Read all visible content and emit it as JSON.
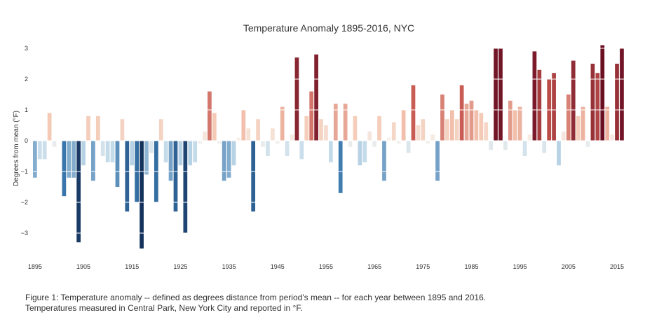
{
  "chart_data": {
    "type": "bar",
    "title": "Temperature Anomaly 1895-2016, NYC",
    "xlabel": "",
    "ylabel": "Degrees from mean (°F)",
    "x_start": 1895,
    "years": [
      1895,
      1896,
      1897,
      1898,
      1899,
      1900,
      1901,
      1902,
      1903,
      1904,
      1905,
      1906,
      1907,
      1908,
      1909,
      1910,
      1911,
      1912,
      1913,
      1914,
      1915,
      1916,
      1917,
      1918,
      1919,
      1920,
      1921,
      1922,
      1923,
      1924,
      1925,
      1926,
      1927,
      1928,
      1929,
      1930,
      1931,
      1932,
      1933,
      1934,
      1935,
      1936,
      1937,
      1938,
      1939,
      1940,
      1941,
      1942,
      1943,
      1944,
      1945,
      1946,
      1947,
      1948,
      1949,
      1950,
      1951,
      1952,
      1953,
      1954,
      1955,
      1956,
      1957,
      1958,
      1959,
      1960,
      1961,
      1962,
      1963,
      1964,
      1965,
      1966,
      1967,
      1968,
      1969,
      1970,
      1971,
      1972,
      1973,
      1974,
      1975,
      1976,
      1977,
      1978,
      1979,
      1980,
      1981,
      1982,
      1983,
      1984,
      1985,
      1986,
      1987,
      1988,
      1989,
      1990,
      1991,
      1992,
      1993,
      1994,
      1995,
      1996,
      1997,
      1998,
      1999,
      2000,
      2001,
      2002,
      2003,
      2004,
      2005,
      2006,
      2007,
      2008,
      2009,
      2010,
      2011,
      2012,
      2013,
      2014,
      2015,
      2016
    ],
    "values": [
      -1.2,
      -0.6,
      -0.6,
      0.9,
      -0.2,
      0.0,
      -1.8,
      -1.2,
      -1.2,
      -3.3,
      -0.8,
      0.8,
      -1.3,
      0.8,
      -0.5,
      -0.7,
      -0.7,
      -1.5,
      0.7,
      -2.3,
      -0.8,
      -2.0,
      -3.5,
      -1.1,
      -0.4,
      -2.0,
      0.7,
      -0.7,
      -1.3,
      -2.3,
      -0.8,
      -3.0,
      -0.8,
      -0.7,
      -0.1,
      0.3,
      1.6,
      0.9,
      -0.1,
      -1.3,
      -1.2,
      -0.8,
      0.1,
      1.0,
      0.4,
      -2.3,
      0.7,
      -0.2,
      -0.5,
      0.4,
      -0.1,
      1.1,
      -0.5,
      0.2,
      2.7,
      -0.6,
      0.8,
      1.6,
      2.8,
      0.7,
      0.5,
      -0.7,
      1.2,
      -1.7,
      1.2,
      -0.2,
      0.8,
      -0.8,
      -0.7,
      0.3,
      -0.2,
      0.8,
      -1.3,
      0.1,
      0.6,
      -0.1,
      1.0,
      -0.4,
      1.8,
      0.5,
      0.7,
      -0.1,
      0.2,
      -1.3,
      1.5,
      0.7,
      1.0,
      0.7,
      1.8,
      1.2,
      1.3,
      1.0,
      0.9,
      0.6,
      -0.3,
      3.0,
      3.0,
      -0.3,
      1.3,
      1.0,
      1.1,
      -0.5,
      0.2,
      2.9,
      2.3,
      -0.4,
      2.0,
      2.2,
      -0.8,
      0.3,
      1.5,
      2.6,
      0.8,
      1.1,
      -0.2,
      2.5,
      2.2,
      3.1,
      1.1,
      0.2,
      2.5,
      3.0
    ],
    "ylim": [
      -3.8,
      3.3
    ],
    "yticks": [
      -3,
      -2,
      -1,
      0,
      1,
      2,
      3
    ],
    "xtick_years": [
      1895,
      1905,
      1915,
      1925,
      1935,
      1945,
      1955,
      1965,
      1975,
      1985,
      1995,
      2005,
      2015
    ],
    "grid": "horizontal white lines drawn over the bars",
    "colormap": "diverging red-blue by value (blue = colder, red = warmer)"
  },
  "colors": {
    "neg_dark": "#14325c",
    "neg_mid": "#3b78ad",
    "neg_light": "#c4dbea",
    "neutral": "#f7f3ef",
    "pos_light": "#f4c8b3",
    "pos_mid": "#c6564f",
    "pos_dark": "#6b0f23",
    "grid": "#ffffff",
    "text": "#333333"
  },
  "caption": {
    "line1": "Figure 1:  Temperature anomaly -- defined as degrees distance from period's mean -- for each year between 1895 and 2016.",
    "line2": "Temperatures measured in Central Park, New York City and reported in °F."
  }
}
